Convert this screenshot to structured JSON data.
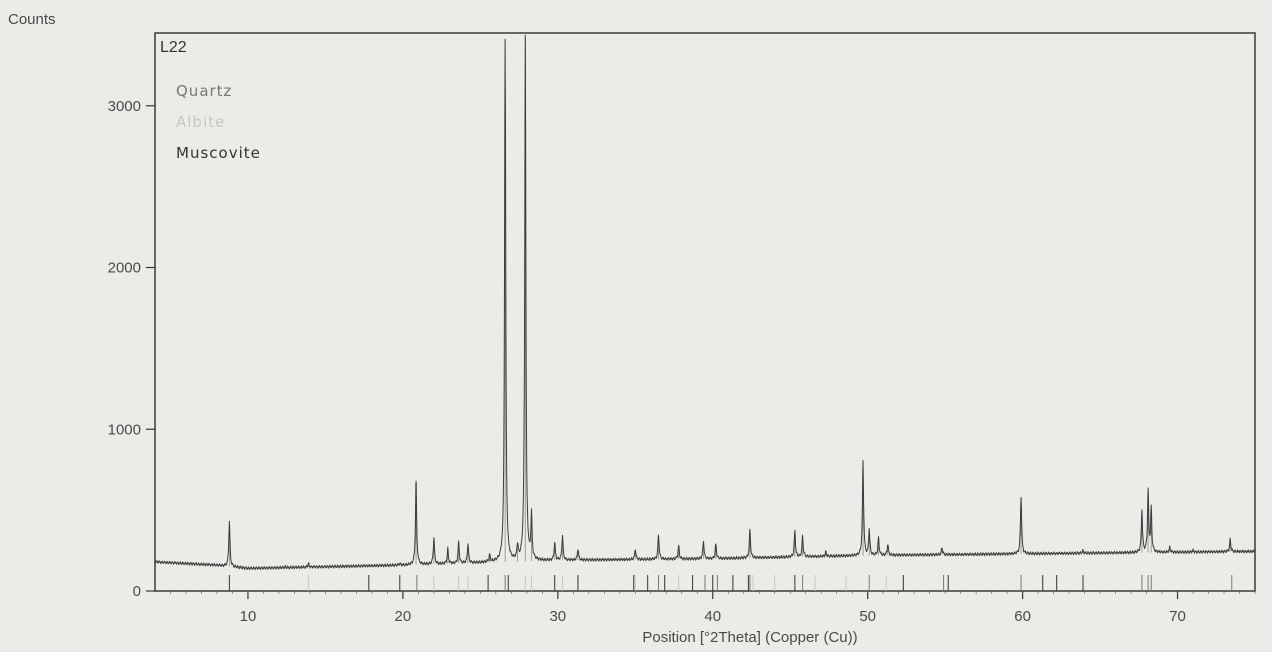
{
  "chart_data": {
    "type": "line",
    "title": "",
    "sample_label": "L22",
    "ylabel": "Counts",
    "xlabel": "Position [°2Theta] (Copper (Cu))",
    "xlim": [
      4,
      75
    ],
    "ylim": [
      0,
      3450
    ],
    "x_ticks": [
      10,
      20,
      30,
      40,
      50,
      60,
      70
    ],
    "y_ticks": [
      0,
      1000,
      2000,
      3000
    ],
    "grid": false,
    "legend_position": "top-left",
    "series": [
      {
        "name": "L22",
        "color": "#3c3c3c",
        "peaks": [
          {
            "x": 8.8,
            "y": 430
          },
          {
            "x": 12.4,
            "y": 150
          },
          {
            "x": 13.9,
            "y": 170
          },
          {
            "x": 17.8,
            "y": 150
          },
          {
            "x": 19.8,
            "y": 170
          },
          {
            "x": 20.85,
            "y": 690
          },
          {
            "x": 22.0,
            "y": 330
          },
          {
            "x": 22.9,
            "y": 260
          },
          {
            "x": 23.6,
            "y": 300
          },
          {
            "x": 24.2,
            "y": 290
          },
          {
            "x": 25.6,
            "y": 220
          },
          {
            "x": 26.6,
            "y": 3400
          },
          {
            "x": 27.4,
            "y": 270
          },
          {
            "x": 27.9,
            "y": 3430
          },
          {
            "x": 28.3,
            "y": 460
          },
          {
            "x": 29.8,
            "y": 300
          },
          {
            "x": 30.3,
            "y": 340
          },
          {
            "x": 31.3,
            "y": 260
          },
          {
            "x": 35.0,
            "y": 260
          },
          {
            "x": 36.5,
            "y": 350
          },
          {
            "x": 37.8,
            "y": 280
          },
          {
            "x": 39.4,
            "y": 310
          },
          {
            "x": 40.2,
            "y": 290
          },
          {
            "x": 42.4,
            "y": 380
          },
          {
            "x": 45.3,
            "y": 370
          },
          {
            "x": 45.8,
            "y": 340
          },
          {
            "x": 47.3,
            "y": 240
          },
          {
            "x": 49.7,
            "y": 800
          },
          {
            "x": 50.1,
            "y": 380
          },
          {
            "x": 50.7,
            "y": 330
          },
          {
            "x": 51.3,
            "y": 290
          },
          {
            "x": 54.8,
            "y": 270
          },
          {
            "x": 59.9,
            "y": 580
          },
          {
            "x": 63.9,
            "y": 250
          },
          {
            "x": 67.7,
            "y": 500
          },
          {
            "x": 68.1,
            "y": 620
          },
          {
            "x": 68.3,
            "y": 510
          },
          {
            "x": 69.5,
            "y": 270
          },
          {
            "x": 71.0,
            "y": 250
          },
          {
            "x": 73.4,
            "y": 320
          }
        ],
        "background": [
          {
            "x": 4,
            "y": 180
          },
          {
            "x": 8,
            "y": 160
          },
          {
            "x": 10,
            "y": 140
          },
          {
            "x": 20,
            "y": 160
          },
          {
            "x": 30,
            "y": 190
          },
          {
            "x": 40,
            "y": 200
          },
          {
            "x": 45,
            "y": 210
          },
          {
            "x": 50,
            "y": 220
          },
          {
            "x": 60,
            "y": 230
          },
          {
            "x": 70,
            "y": 240
          },
          {
            "x": 75,
            "y": 245
          }
        ]
      }
    ],
    "legend": [
      {
        "label": "Quartz",
        "color": "#777777"
      },
      {
        "label": "Albite",
        "color": "#c7c7c7"
      },
      {
        "label": "Muscovite",
        "color": "#333333"
      }
    ],
    "reference_lines": [
      {
        "phase": "Quartz",
        "x": [
          20.9,
          26.6,
          36.5,
          39.5,
          40.3,
          42.4,
          45.8,
          50.1,
          54.9,
          59.9,
          67.7,
          68.1,
          68.3,
          73.5
        ]
      },
      {
        "phase": "Albite",
        "x": [
          13.9,
          22.0,
          23.6,
          24.2,
          27.9,
          28.3,
          30.3,
          31.3,
          35.0,
          37.8,
          42.6,
          44.0,
          46.6,
          48.6,
          51.2
        ]
      },
      {
        "phase": "Muscovite",
        "x": [
          8.8,
          17.8,
          19.8,
          25.5,
          26.8,
          29.8,
          31.3,
          34.9,
          35.8,
          36.9,
          38.7,
          40.0,
          41.3,
          42.3,
          45.3,
          52.3,
          55.2,
          61.3,
          62.2,
          63.9
        ]
      }
    ]
  }
}
